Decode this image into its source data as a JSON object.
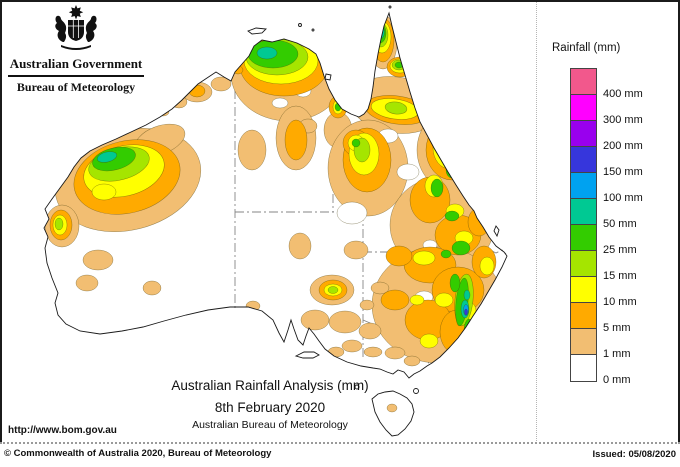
{
  "header": {
    "government_label": "Australian Government",
    "agency_label": "Bureau of Meteorology"
  },
  "legend": {
    "title": "Rainfall (mm)",
    "entries": [
      {
        "key": "400",
        "label": "400 mm",
        "color": "#F2588C"
      },
      {
        "key": "300",
        "label": "300 mm",
        "color": "#FF00FF"
      },
      {
        "key": "200",
        "label": "200 mm",
        "color": "#9900EE"
      },
      {
        "key": "150",
        "label": "150 mm",
        "color": "#3636DC"
      },
      {
        "key": "100",
        "label": "100 mm",
        "color": "#00A2F0"
      },
      {
        "key": "50",
        "label": "50 mm",
        "color": "#00C993"
      },
      {
        "key": "25",
        "label": "25 mm",
        "color": "#33CC00"
      },
      {
        "key": "15",
        "label": "15 mm",
        "color": "#A5E500"
      },
      {
        "key": "10",
        "label": "10 mm",
        "color": "#FFFF00"
      },
      {
        "key": "5",
        "label": "5 mm",
        "color": "#FFAA00"
      },
      {
        "key": "1",
        "label": "1 mm",
        "color": "#F2BE72"
      },
      {
        "key": "0",
        "label": "0 mm",
        "color": "#FFFFFF"
      }
    ]
  },
  "caption": {
    "line1": "Australian Rainfall Analysis (mm)",
    "line2": "8th February 2020",
    "line3": "Australian Bureau of Meteorology"
  },
  "footer": {
    "url": "http://www.bom.gov.au",
    "copyright": "© Commonwealth of Australia 2020, Bureau of Meteorology",
    "issued": "Issued: 05/08/2020"
  }
}
